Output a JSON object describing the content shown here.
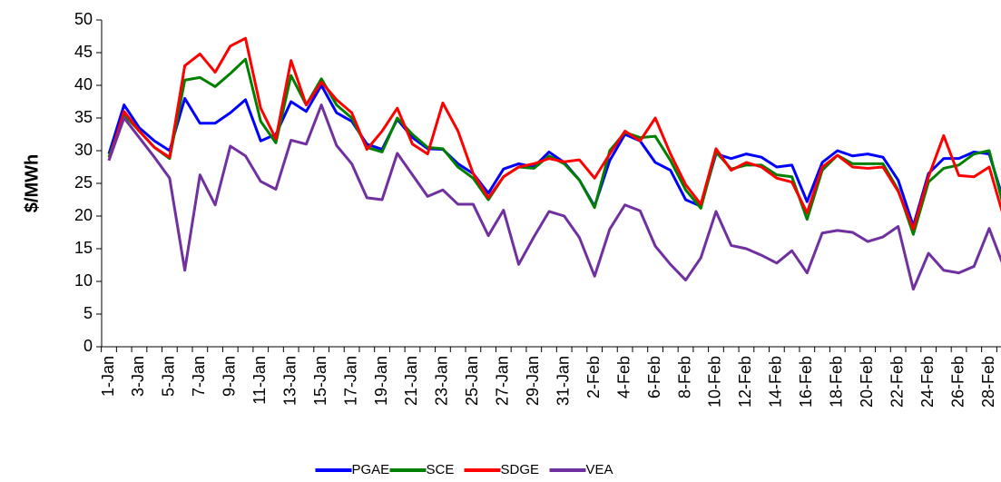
{
  "chart_data": {
    "type": "line",
    "ylabel": "$/MWh",
    "categories": [
      "1-Jan",
      null,
      "3-Jan",
      null,
      "5-Jan",
      null,
      "7-Jan",
      null,
      "9-Jan",
      null,
      "11-Jan",
      null,
      "13-Jan",
      null,
      "15-Jan",
      null,
      "17-Jan",
      null,
      "19-Jan",
      null,
      "21-Jan",
      null,
      "23-Jan",
      null,
      "25-Jan",
      null,
      "27-Jan",
      null,
      "29-Jan",
      null,
      "31-Jan",
      null,
      "2-Feb",
      null,
      "4-Feb",
      null,
      "6-Feb",
      null,
      "8-Feb",
      null,
      "10-Feb",
      null,
      "12-Feb",
      null,
      "14-Feb",
      null,
      "16-Feb",
      null,
      "18-Feb",
      null,
      "20-Feb",
      null,
      "22-Feb",
      null,
      "24-Feb",
      null,
      "26-Feb",
      null,
      "28-Feb",
      null
    ],
    "series": [
      {
        "name": "PGAE",
        "color": "#0000ff",
        "values": [
          29.5,
          37,
          33.5,
          31.5,
          30,
          38,
          34.2,
          34.2,
          35.8,
          37.8,
          31.5,
          32.5,
          37.5,
          36,
          40,
          35.8,
          34.5,
          31,
          30.2,
          34.8,
          32,
          30.3,
          30.2,
          28,
          26.5,
          23.5,
          27.2,
          28,
          27.5,
          29.8,
          28.2,
          25.5,
          21.5,
          28.5,
          32.5,
          31.5,
          28.2,
          27,
          22.5,
          21.5,
          29.5,
          28.8,
          29.5,
          29,
          27.5,
          27.8,
          22.2,
          28.2,
          30,
          29.2,
          29.5,
          29,
          25.5,
          18.5,
          26.5,
          28.8,
          28.8,
          29.8,
          29.5,
          22
        ]
      },
      {
        "name": "SCE",
        "color": "#008000",
        "values": [
          29,
          35.5,
          33,
          30.5,
          28.8,
          40.8,
          41.2,
          39.8,
          41.8,
          44,
          34.5,
          31.2,
          41.5,
          37,
          41,
          37,
          35,
          30.5,
          29.8,
          35,
          32.5,
          30.5,
          30.3,
          27.5,
          25.8,
          22.5,
          26,
          27.5,
          27.3,
          29.2,
          28,
          25.5,
          21.3,
          30,
          32.8,
          32,
          32.2,
          28.5,
          24,
          21.2,
          29.8,
          27.2,
          27.8,
          27.8,
          26.3,
          26,
          19.5,
          27,
          29.3,
          28,
          28,
          28,
          24,
          17.2,
          25.2,
          27.3,
          27.8,
          29.5,
          30,
          21
        ]
      },
      {
        "name": "SDGE",
        "color": "#ff0000",
        "values": [
          28.5,
          36,
          33,
          30.5,
          29,
          43,
          44.8,
          42,
          46,
          47.2,
          36.5,
          31.8,
          43.8,
          37,
          40.5,
          37.8,
          35.8,
          30.2,
          33,
          36.5,
          31,
          29.5,
          37.3,
          33,
          26.5,
          22.8,
          26,
          27.5,
          28,
          28.8,
          28.3,
          28.6,
          25.8,
          29.5,
          33,
          31.5,
          35,
          29.5,
          24.8,
          21.8,
          30.3,
          27,
          28.2,
          27.5,
          25.8,
          25.2,
          20.5,
          27.5,
          29.3,
          27.5,
          27.3,
          27.5,
          23.8,
          18,
          26,
          32.3,
          26.2,
          26,
          27.5,
          19.5
        ]
      },
      {
        "name": "VEA",
        "color": "#7030a0",
        "values": [
          28.5,
          35,
          32,
          29,
          25.8,
          11.7,
          26.3,
          21.7,
          30.7,
          29.2,
          25.3,
          24.1,
          31.6,
          31,
          37,
          30.8,
          28,
          22.8,
          22.5,
          29.6,
          26.3,
          23,
          24,
          21.8,
          21.8,
          17,
          20.9,
          12.6,
          16.8,
          20.7,
          20,
          16.7,
          10.8,
          18,
          21.7,
          20.8,
          15.4,
          12.6,
          10.2,
          13.6,
          20.7,
          15.5,
          15,
          14,
          12.8,
          14.7,
          11.3,
          17.4,
          17.8,
          17.5,
          16.1,
          16.8,
          18.4,
          8.8,
          14.3,
          11.7,
          11.3,
          12.3,
          18.1,
          12
        ]
      }
    ],
    "ylim": [
      0,
      50
    ],
    "yticks": [
      0,
      5,
      10,
      15,
      20,
      25,
      30,
      35,
      40,
      45,
      50
    ],
    "grid": false,
    "legend": "bottom"
  }
}
